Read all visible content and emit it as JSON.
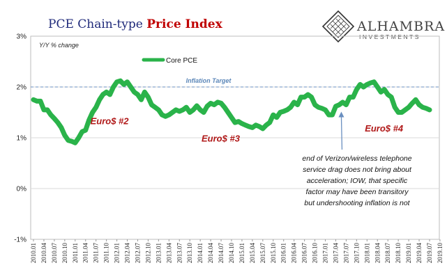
{
  "header": {
    "title_part1": "PCE Chain-type ",
    "title_part2": "Price Index",
    "logo_name": "ALHAMBRA",
    "logo_sub": "INVESTMENTS",
    "logo_icon": "diamond-lattice-icon"
  },
  "colors": {
    "series": "#2ab34a",
    "target": "#6a8fc0",
    "euro": "#b01818",
    "title_blue": "#1f2a7a",
    "title_red": "#c00000"
  },
  "chart_data": {
    "type": "line",
    "subtitle": "Y/Y % change",
    "ylim": [
      -1,
      3
    ],
    "yticks": [
      "3%",
      "2%",
      "1%",
      "0%",
      "-1%"
    ],
    "ytick_values": [
      3,
      2,
      1,
      0,
      -1
    ],
    "grid": "horizontal",
    "legend_position": "top-left",
    "x_tick_labels": [
      "2010.01",
      "2010.04",
      "2010.07",
      "2010.10",
      "2011.01",
      "2011.04",
      "2011.07",
      "2011.10",
      "2012.01",
      "2012.04",
      "2012.07",
      "2012.10",
      "2013.01",
      "2013.04",
      "2013.07",
      "2013.10",
      "2014.01",
      "2014.04",
      "2014.07",
      "2014.10",
      "2015.01",
      "2015.04",
      "2015.07",
      "2015.10",
      "2016.01",
      "2016.04",
      "2016.07",
      "2016.10",
      "2017.01",
      "2017.04",
      "2017.07",
      "2017.10",
      "2018.01",
      "2018.04",
      "2018.07",
      "2018.10",
      "2019.01",
      "2019.04",
      "2019.07",
      "2019.10"
    ],
    "series": [
      {
        "name": "Core PCE",
        "values": [
          1.75,
          1.72,
          1.72,
          1.55,
          1.55,
          1.45,
          1.38,
          1.3,
          1.2,
          1.05,
          0.95,
          0.93,
          0.9,
          1.0,
          1.12,
          1.15,
          1.35,
          1.5,
          1.6,
          1.75,
          1.85,
          1.9,
          1.85,
          2.0,
          2.1,
          2.12,
          2.05,
          2.1,
          2.0,
          1.9,
          1.85,
          1.75,
          1.9,
          1.8,
          1.65,
          1.6,
          1.55,
          1.45,
          1.42,
          1.45,
          1.5,
          1.55,
          1.52,
          1.55,
          1.6,
          1.5,
          1.55,
          1.63,
          1.55,
          1.5,
          1.62,
          1.68,
          1.65,
          1.7,
          1.68,
          1.6,
          1.5,
          1.4,
          1.3,
          1.32,
          1.28,
          1.25,
          1.22,
          1.2,
          1.25,
          1.22,
          1.18,
          1.25,
          1.3,
          1.45,
          1.4,
          1.5,
          1.52,
          1.55,
          1.6,
          1.7,
          1.65,
          1.8,
          1.8,
          1.85,
          1.8,
          1.65,
          1.6,
          1.58,
          1.55,
          1.45,
          1.45,
          1.62,
          1.65,
          1.7,
          1.65,
          1.8,
          1.8,
          1.95,
          2.05,
          2.0,
          2.05,
          2.08,
          2.1,
          2.0,
          1.9,
          1.95,
          1.85,
          1.8,
          1.6,
          1.5,
          1.5,
          1.55,
          1.6,
          1.68,
          1.75,
          1.65,
          1.6,
          1.58,
          1.55
        ]
      }
    ],
    "target_line": {
      "value": 2,
      "label": "Inflation Target"
    },
    "annotations": [
      {
        "text": "Euro$ #2",
        "x_index": 24,
        "y": 1.32
      },
      {
        "text": "Euro$ #3",
        "x_index": 56,
        "y": 0.98
      },
      {
        "text": "Euro$ #4",
        "x_index": 103,
        "y": 1.18
      }
    ],
    "note": {
      "lines": [
        "end of Verizon/wireless telephone",
        "service drag does not bring about",
        "acceleration; IOW, that specific",
        "factor may have been transitory",
        "but undershooting inflation is not"
      ],
      "arrow_to_index": 88
    }
  }
}
